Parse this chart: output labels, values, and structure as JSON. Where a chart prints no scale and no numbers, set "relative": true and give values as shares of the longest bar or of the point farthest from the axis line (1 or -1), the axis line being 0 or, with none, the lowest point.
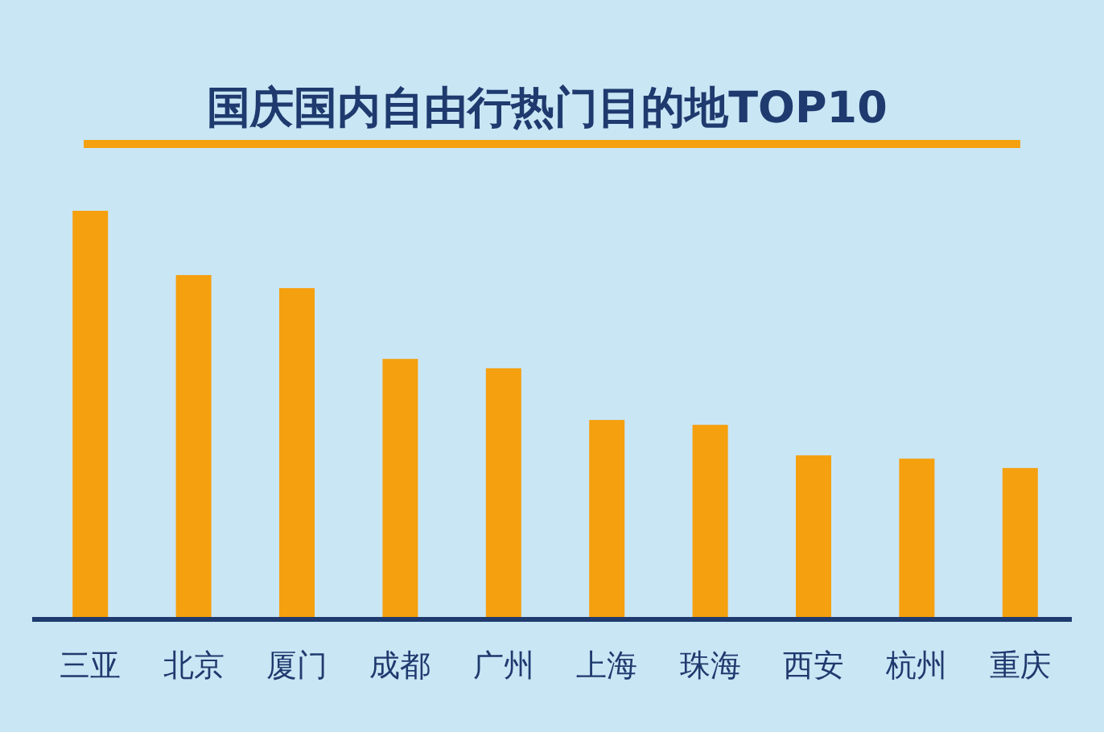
{
  "chart_data": {
    "type": "bar",
    "title": "国庆国内自由行热门目的地TOP10",
    "categories": [
      "三亚",
      "北京",
      "厦门",
      "成都",
      "广州",
      "上海",
      "珠海",
      "西安",
      "杭州",
      "重庆"
    ],
    "values": [
      1,
      0.842,
      0.81,
      0.636,
      0.613,
      0.486,
      0.474,
      0.399,
      0.391,
      0.368
    ],
    "color": "#f5a00f",
    "relative": true
  }
}
